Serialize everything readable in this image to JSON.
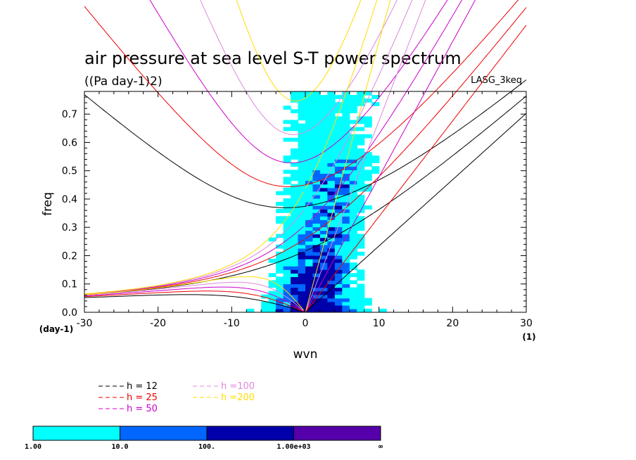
{
  "chart_data": {
    "type": "heatmap",
    "title": "air pressure at sea level S-T power spectrum",
    "units_label": "((Pa day-1)2)",
    "dataset_label": "LASG_3keq",
    "xlabel": "wvn",
    "ylabel": "freq",
    "x_unit_label": "(1)",
    "y_unit_label": "(day-1)",
    "xlim": [
      -30,
      30
    ],
    "ylim": [
      0.0,
      0.78
    ],
    "x_ticks": [
      "-30",
      "-20",
      "-10",
      "0",
      "10",
      "20",
      "30"
    ],
    "y_ticks": [
      "0.0",
      "0.1",
      "0.2",
      "0.3",
      "0.4",
      "0.5",
      "0.6",
      "0.7"
    ],
    "color_levels": [
      {
        "from": "1.00",
        "to": "10.0",
        "color": "#00ffff"
      },
      {
        "from": "10.0",
        "to": "100.",
        "color": "#0066ff"
      },
      {
        "from": "100.",
        "to": "1.00e+03",
        "color": "#0000aa"
      },
      {
        "from": "1.00e+03",
        "to": "∞",
        "color": "#5500aa"
      }
    ],
    "colorbar_labels": [
      "1.00",
      "10.0",
      "100.",
      "1.00e+03",
      "∞"
    ],
    "dispersion_curves": [
      {
        "label": "h = 12",
        "h": 12,
        "color": "#000000"
      },
      {
        "label": "h = 25",
        "h": 25,
        "color": "#ee0000"
      },
      {
        "label": "h = 50",
        "h": 50,
        "color": "#cc00cc"
      },
      {
        "label": "h =100",
        "h": 100,
        "color": "#dd88dd"
      },
      {
        "label": "h =200",
        "h": 200,
        "color": "#ffdd00"
      }
    ]
  }
}
